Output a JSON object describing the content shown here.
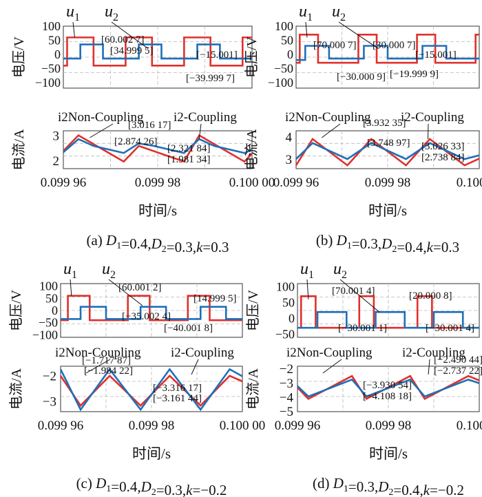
{
  "chart_data": [
    {
      "id": "a",
      "type": "line",
      "caption": {
        "prefix": "(a) ",
        "D1": "0.4",
        "D2": "0.3",
        "k": "0.3"
      },
      "xlabel": "时间/s",
      "xticks": [
        "0.099 96",
        "0.099 98",
        "0.100 00"
      ],
      "voltage": {
        "ylabel": "电压/V",
        "ylim": [
          -120,
          100
        ],
        "yticks": [
          "100",
          "50",
          "0",
          "-50",
          "-100"
        ],
        "labels": [
          {
            "text": "u",
            "sub": "1"
          },
          {
            "text": "u",
            "sub": "2"
          }
        ],
        "series": [
          {
            "name": "u1",
            "color": "#e0302c",
            "x": [
              0,
              0.02,
              0.02,
              0.16,
              0.16,
              0.33,
              0.33,
              0.47,
              0.47,
              0.64,
              0.64,
              0.78,
              0.78,
              0.95,
              0.95,
              1.0
            ],
            "y": [
              -40,
              -40,
              60,
              60,
              -40,
              -40,
              60,
              60,
              -40,
              -40,
              60,
              60,
              -40,
              -40,
              60,
              60
            ]
          },
          {
            "name": "u2",
            "color": "#1f6fb8",
            "x": [
              0,
              0.09,
              0.09,
              0.21,
              0.21,
              0.4,
              0.4,
              0.52,
              0.52,
              0.71,
              0.71,
              0.83,
              0.83,
              1.0
            ],
            "y": [
              -15,
              -15,
              35,
              35,
              -15,
              -15,
              35,
              35,
              -15,
              -15,
              35,
              35,
              -15,
              -15
            ]
          }
        ],
        "annotations": [
          "[60.002 7]",
          "[34.999 5]",
          "[-15.001]",
          "[-39.999 7]"
        ]
      },
      "current": {
        "ylabel": "电流/A",
        "ylim": [
          1.7,
          3.2
        ],
        "yticks": [
          "3",
          "2"
        ],
        "legend": [
          "i2Non-Coupling",
          "i2-Coupling"
        ],
        "series": [
          {
            "name": "i2Non-Coupling",
            "color": "#e0302c",
            "x": [
              0,
              0.08,
              0.32,
              0.4,
              0.64,
              0.72,
              0.96,
              1.0
            ],
            "y": [
              2.4,
              3.02,
              1.98,
              2.6,
              1.98,
              3.02,
              1.98,
              2.3
            ]
          },
          {
            "name": "i2-Coupling",
            "color": "#1f6fb8",
            "x": [
              0,
              0.08,
              0.16,
              0.32,
              0.4,
              0.48,
              0.64,
              0.72,
              0.8,
              0.96,
              1.0
            ],
            "y": [
              2.35,
              2.87,
              2.6,
              2.32,
              2.7,
              2.6,
              2.32,
              2.87,
              2.6,
              2.32,
              2.45
            ]
          }
        ],
        "annotations": [
          "[3.016 17]",
          "[2.874 26]",
          "[2.321 84]",
          "[1.981 34]"
        ]
      }
    },
    {
      "id": "b",
      "type": "line",
      "caption": {
        "prefix": "(b) ",
        "D1": "0.3",
        "D2": "0.4",
        "k": "0.3"
      },
      "xlabel": "时间/s",
      "xticks": [
        "0.099 96",
        "0.099 98",
        "0.100 00"
      ],
      "voltage": {
        "ylabel": "电压/V",
        "ylim": [
          -120,
          100
        ],
        "yticks": [
          "100",
          "50",
          "0",
          "-50",
          "-100"
        ],
        "labels": [
          {
            "text": "u",
            "sub": "1"
          },
          {
            "text": "u",
            "sub": "2"
          }
        ],
        "series": [
          {
            "name": "u1",
            "color": "#e0302c",
            "x": [
              0,
              0.02,
              0.02,
              0.12,
              0.12,
              0.34,
              0.34,
              0.44,
              0.44,
              0.66,
              0.66,
              0.76,
              0.76,
              0.98,
              0.98,
              1.0
            ],
            "y": [
              -30,
              -30,
              70,
              70,
              -30,
              -30,
              70,
              70,
              -30,
              -30,
              70,
              70,
              -30,
              -30,
              70,
              70
            ]
          },
          {
            "name": "u2",
            "color": "#1f6fb8",
            "x": [
              0,
              0.05,
              0.05,
              0.18,
              0.18,
              0.37,
              0.37,
              0.5,
              0.5,
              0.69,
              0.69,
              0.82,
              0.82,
              1.0
            ],
            "y": [
              -20,
              -20,
              30,
              30,
              -15,
              -15,
              30,
              30,
              -15,
              -15,
              30,
              30,
              -15,
              -15
            ]
          }
        ],
        "annotations": [
          "[70.000 7]",
          "[30.000 7]",
          "[-15.001]",
          "[-30.000 9]",
          "[-19.999 9]"
        ]
      },
      "current": {
        "ylabel": "电流/A",
        "ylim": [
          2.6,
          4.3
        ],
        "yticks": [
          "4",
          "3"
        ],
        "legend": [
          "i2Non-Coupling",
          "i2-Coupling"
        ],
        "series": [
          {
            "name": "i2Non-Coupling",
            "color": "#e0302c",
            "x": [
              0,
              0.09,
              0.28,
              0.41,
              0.6,
              0.73,
              0.92,
              1.0
            ],
            "y": [
              2.75,
              3.93,
              2.75,
              3.93,
              2.75,
              3.93,
              2.75,
              3.05
            ]
          },
          {
            "name": "i2-Coupling",
            "color": "#1f6fb8",
            "x": [
              0,
              0.09,
              0.28,
              0.41,
              0.6,
              0.73,
              0.92,
              1.0
            ],
            "y": [
              3.03,
              3.75,
              3.03,
              3.75,
              3.03,
              3.75,
              3.03,
              3.2
            ]
          }
        ],
        "annotations": [
          "[3.932 35]",
          "[3.748 97]",
          "[3.026 33]",
          "[2.738 84]"
        ]
      }
    },
    {
      "id": "c",
      "type": "line",
      "caption": {
        "prefix": "(c) ",
        "D1": "0.4",
        "D2": "0.3",
        "k": "-0.2"
      },
      "xlabel": "时间/s",
      "xticks": [
        "0.099 96",
        "0.099 98",
        "0.100 00"
      ],
      "voltage": {
        "ylabel": "电压/V",
        "ylim": [
          -110,
          110
        ],
        "yticks": [
          "100",
          "50",
          "0",
          "-50",
          "-100"
        ],
        "labels": [
          {
            "text": "u",
            "sub": "1"
          },
          {
            "text": "u",
            "sub": "2"
          }
        ],
        "series": [
          {
            "name": "u1",
            "color": "#e0302c",
            "x": [
              0,
              0.04,
              0.04,
              0.16,
              0.16,
              0.37,
              0.37,
              0.49,
              0.49,
              0.7,
              0.7,
              0.82,
              0.82,
              1.0
            ],
            "y": [
              -40,
              -40,
              60,
              60,
              -40,
              -40,
              60,
              60,
              -40,
              -40,
              60,
              60,
              -40,
              -40
            ]
          },
          {
            "name": "u2",
            "color": "#1f6fb8",
            "x": [
              0,
              0.11,
              0.11,
              0.25,
              0.25,
              0.44,
              0.44,
              0.58,
              0.58,
              0.77,
              0.77,
              0.91,
              0.91,
              1.0
            ],
            "y": [
              -35,
              -35,
              15,
              15,
              -35,
              -35,
              15,
              15,
              -35,
              -35,
              15,
              15,
              -35,
              -35
            ]
          }
        ],
        "annotations": [
          "[60.001 2]",
          "[-35.002 4]",
          "[14.999 5]",
          "[-40.001 8]"
        ]
      },
      "current": {
        "ylabel": "电流/A",
        "ylim": [
          -3.4,
          -1.6
        ],
        "yticks": [
          "-2",
          "-3"
        ],
        "legend": [
          "i2Non-Coupling",
          "i2-Coupling"
        ],
        "series": [
          {
            "name": "i2Non-Coupling",
            "color": "#e0302c",
            "x": [
              0,
              0.11,
              0.27,
              0.44,
              0.6,
              0.77,
              0.93,
              1.0
            ],
            "y": [
              -1.98,
              -3.16,
              -1.98,
              -3.16,
              -1.98,
              -3.16,
              -1.98,
              -2.2
            ]
          },
          {
            "name": "i2-Coupling",
            "color": "#1f6fb8",
            "x": [
              0,
              0.11,
              0.27,
              0.44,
              0.6,
              0.77,
              0.93,
              1.0
            ],
            "y": [
              -1.72,
              -3.32,
              -1.72,
              -3.32,
              -1.72,
              -3.32,
              -1.72,
              -2.0
            ]
          }
        ],
        "annotations": [
          "[-1.717 87]",
          "[-1.984 22]",
          "[-3.316 17]",
          "[-3.161 44]"
        ]
      }
    },
    {
      "id": "d",
      "type": "line",
      "caption": {
        "prefix": "(d) ",
        "D1": "0.3",
        "D2": "0.4",
        "k": "-0.2"
      },
      "xlabel": "时间/s",
      "xticks": [
        "0.099 96",
        "0.099 98",
        "0.100 00"
      ],
      "voltage": {
        "ylabel": "电压/V",
        "ylim": [
          -60,
          110
        ],
        "yticks": [
          "100",
          "50",
          "0",
          "-50"
        ],
        "labels": [
          {
            "text": "u",
            "sub": "1"
          },
          {
            "text": "u",
            "sub": "2"
          }
        ],
        "series": [
          {
            "name": "u1",
            "color": "#e0302c",
            "x": [
              0,
              0.02,
              0.02,
              0.1,
              0.1,
              0.34,
              0.34,
              0.42,
              0.42,
              0.66,
              0.66,
              0.74,
              0.74,
              1.0
            ],
            "y": [
              -30,
              -30,
              70,
              70,
              -30,
              -30,
              70,
              70,
              -30,
              -30,
              70,
              70,
              -30,
              -30
            ]
          },
          {
            "name": "u2",
            "color": "#1f6fb8",
            "x": [
              0,
              0.11,
              0.11,
              0.27,
              0.27,
              0.43,
              0.43,
              0.59,
              0.59,
              0.75,
              0.75,
              0.91,
              0.91,
              1.0
            ],
            "y": [
              -30,
              -30,
              20,
              20,
              -30,
              -30,
              20,
              20,
              -30,
              -30,
              20,
              20,
              -30,
              -30
            ]
          }
        ],
        "annotations": [
          "[70.001 4]",
          "[20.000 8]",
          "[-30.001 1]",
          "[-30.001 4]"
        ]
      },
      "current": {
        "ylabel": "电流/A",
        "ylim": [
          -5.0,
          -1.8
        ],
        "yticks": [
          "-2",
          "-3",
          "-4",
          "-5"
        ],
        "legend": [
          "i2Non-Coupling",
          "i2-Coupling"
        ],
        "series": [
          {
            "name": "i2Non-Coupling",
            "color": "#e0302c",
            "x": [
              0,
              0.06,
              0.3,
              0.38,
              0.62,
              0.7,
              0.94,
              1.0
            ],
            "y": [
              -3.3,
              -4.1,
              -2.49,
              -4.1,
              -2.49,
              -4.1,
              -2.49,
              -2.8
            ]
          },
          {
            "name": "i2-Coupling",
            "color": "#1f6fb8",
            "x": [
              0,
              0.06,
              0.3,
              0.38,
              0.62,
              0.7,
              0.94,
              1.0
            ],
            "y": [
              -3.2,
              -3.93,
              -2.74,
              -3.93,
              -2.74,
              -3.93,
              -2.74,
              -3.0
            ]
          }
        ],
        "annotations": [
          "[-3.930 54]",
          "[-4.108 18]",
          "[-2.490 44]",
          "[-2.737 22]"
        ]
      }
    }
  ]
}
